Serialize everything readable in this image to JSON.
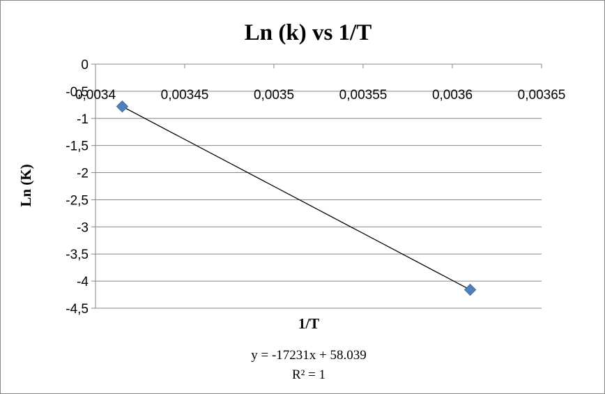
{
  "chart_data": {
    "type": "scatter",
    "title": "Ln (k) vs 1/T",
    "xlabel": "1/T",
    "ylabel": "Ln (K)",
    "xlim": [
      0.0034,
      0.00365
    ],
    "ylim": [
      -4.5,
      0
    ],
    "x_ticks": [
      0.0034,
      0.00345,
      0.0035,
      0.00355,
      0.0036,
      0.00365
    ],
    "x_tick_labels": [
      "0,0034",
      "0,00345",
      "0,0035",
      "0,00355",
      "0,0036",
      "0,00365"
    ],
    "y_ticks": [
      0,
      -0.5,
      -1,
      -1.5,
      -2,
      -2.5,
      -3,
      -3.5,
      -4,
      -4.5
    ],
    "y_tick_labels": [
      "0",
      "-0,5",
      "-1",
      "-1,5",
      "-2",
      "-2,5",
      "-3",
      "-3,5",
      "-4",
      "-4,5"
    ],
    "x_axis_position": "top (crosses at y = 0)",
    "grid": {
      "horizontal": true,
      "vertical": false
    },
    "legend": "none",
    "marker": "diamond",
    "marker_color": "#4f81bd",
    "points": [
      {
        "x": 0.003415,
        "y": -0.78
      },
      {
        "x": 0.00361,
        "y": -4.16
      }
    ],
    "trendline": {
      "type": "linear",
      "color": "#000000",
      "equation": "y = -17231x + 58.039",
      "r_squared": "R² = 1"
    }
  }
}
